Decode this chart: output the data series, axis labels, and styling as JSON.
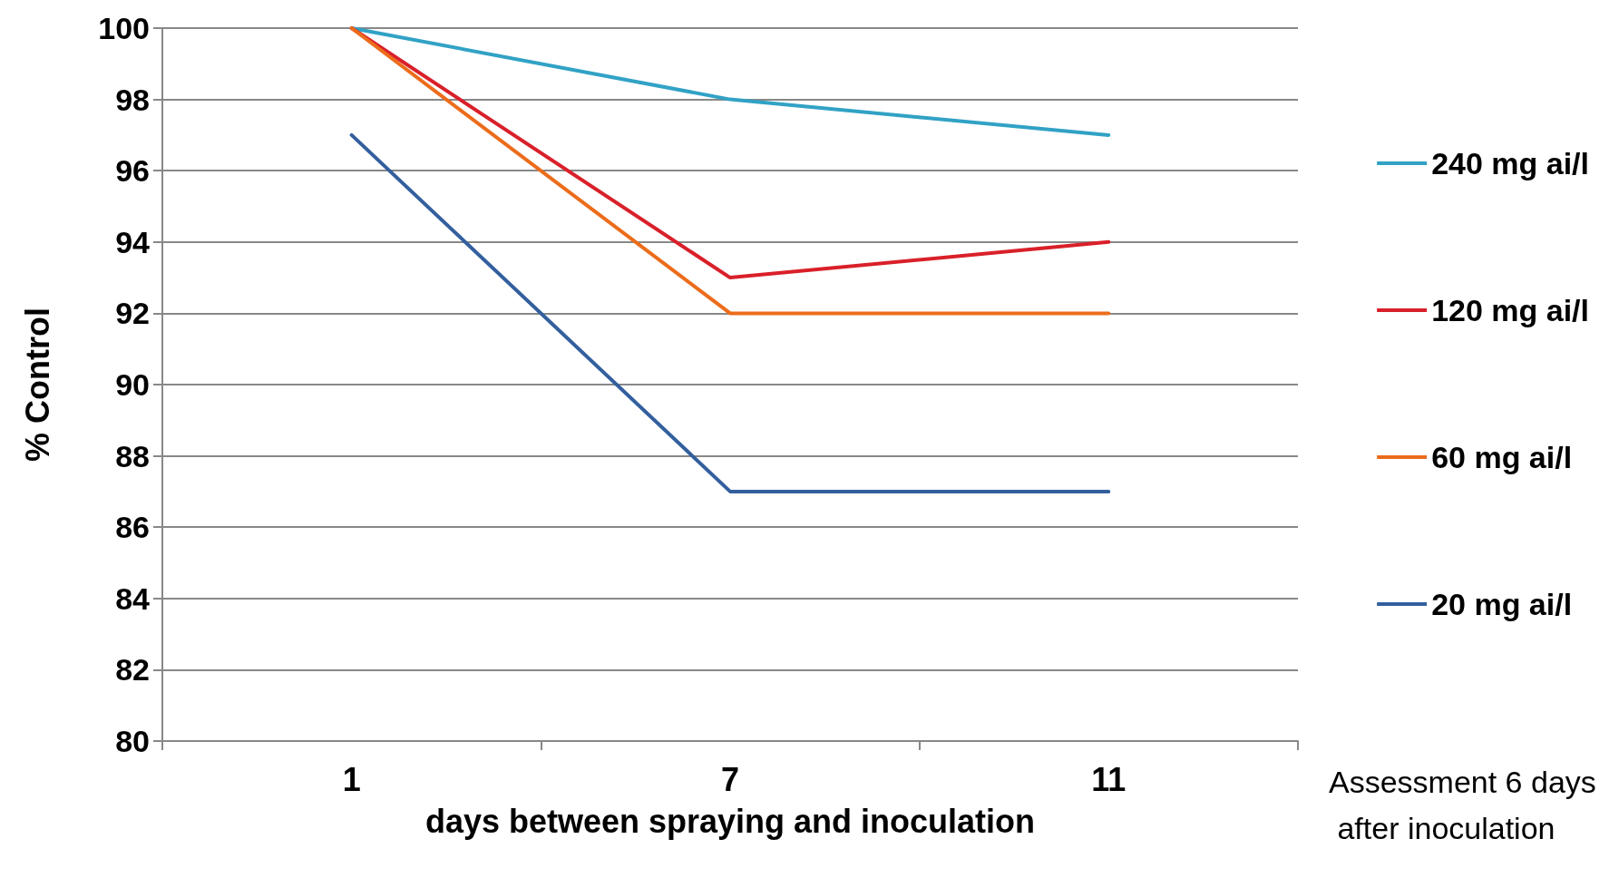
{
  "chart_data": {
    "type": "line",
    "xlabel": "days between spraying and inoculation",
    "ylabel": "% Control",
    "categories": [
      "1",
      "7",
      "11"
    ],
    "series": [
      {
        "name": "240 mg ai/l",
        "color": "#31a2c5",
        "values": [
          100,
          98,
          97
        ]
      },
      {
        "name": "120 mg ai/l",
        "color": "#d9202a",
        "values": [
          100,
          93,
          94
        ]
      },
      {
        "name": "60 mg ai/l",
        "color": "#ec6c1b",
        "values": [
          100,
          92,
          92
        ]
      },
      {
        "name": "20 mg ai/l",
        "color": "#335f9e",
        "values": [
          97,
          87,
          87
        ]
      }
    ],
    "ylim": [
      80,
      100
    ],
    "yticks": [
      80,
      82,
      84,
      86,
      88,
      90,
      92,
      94,
      96,
      98,
      100
    ],
    "grid": "y",
    "legend": "right",
    "marker": "none",
    "line_style": "solid",
    "annotations": [
      "Assessment 6 days after inoculation"
    ]
  }
}
